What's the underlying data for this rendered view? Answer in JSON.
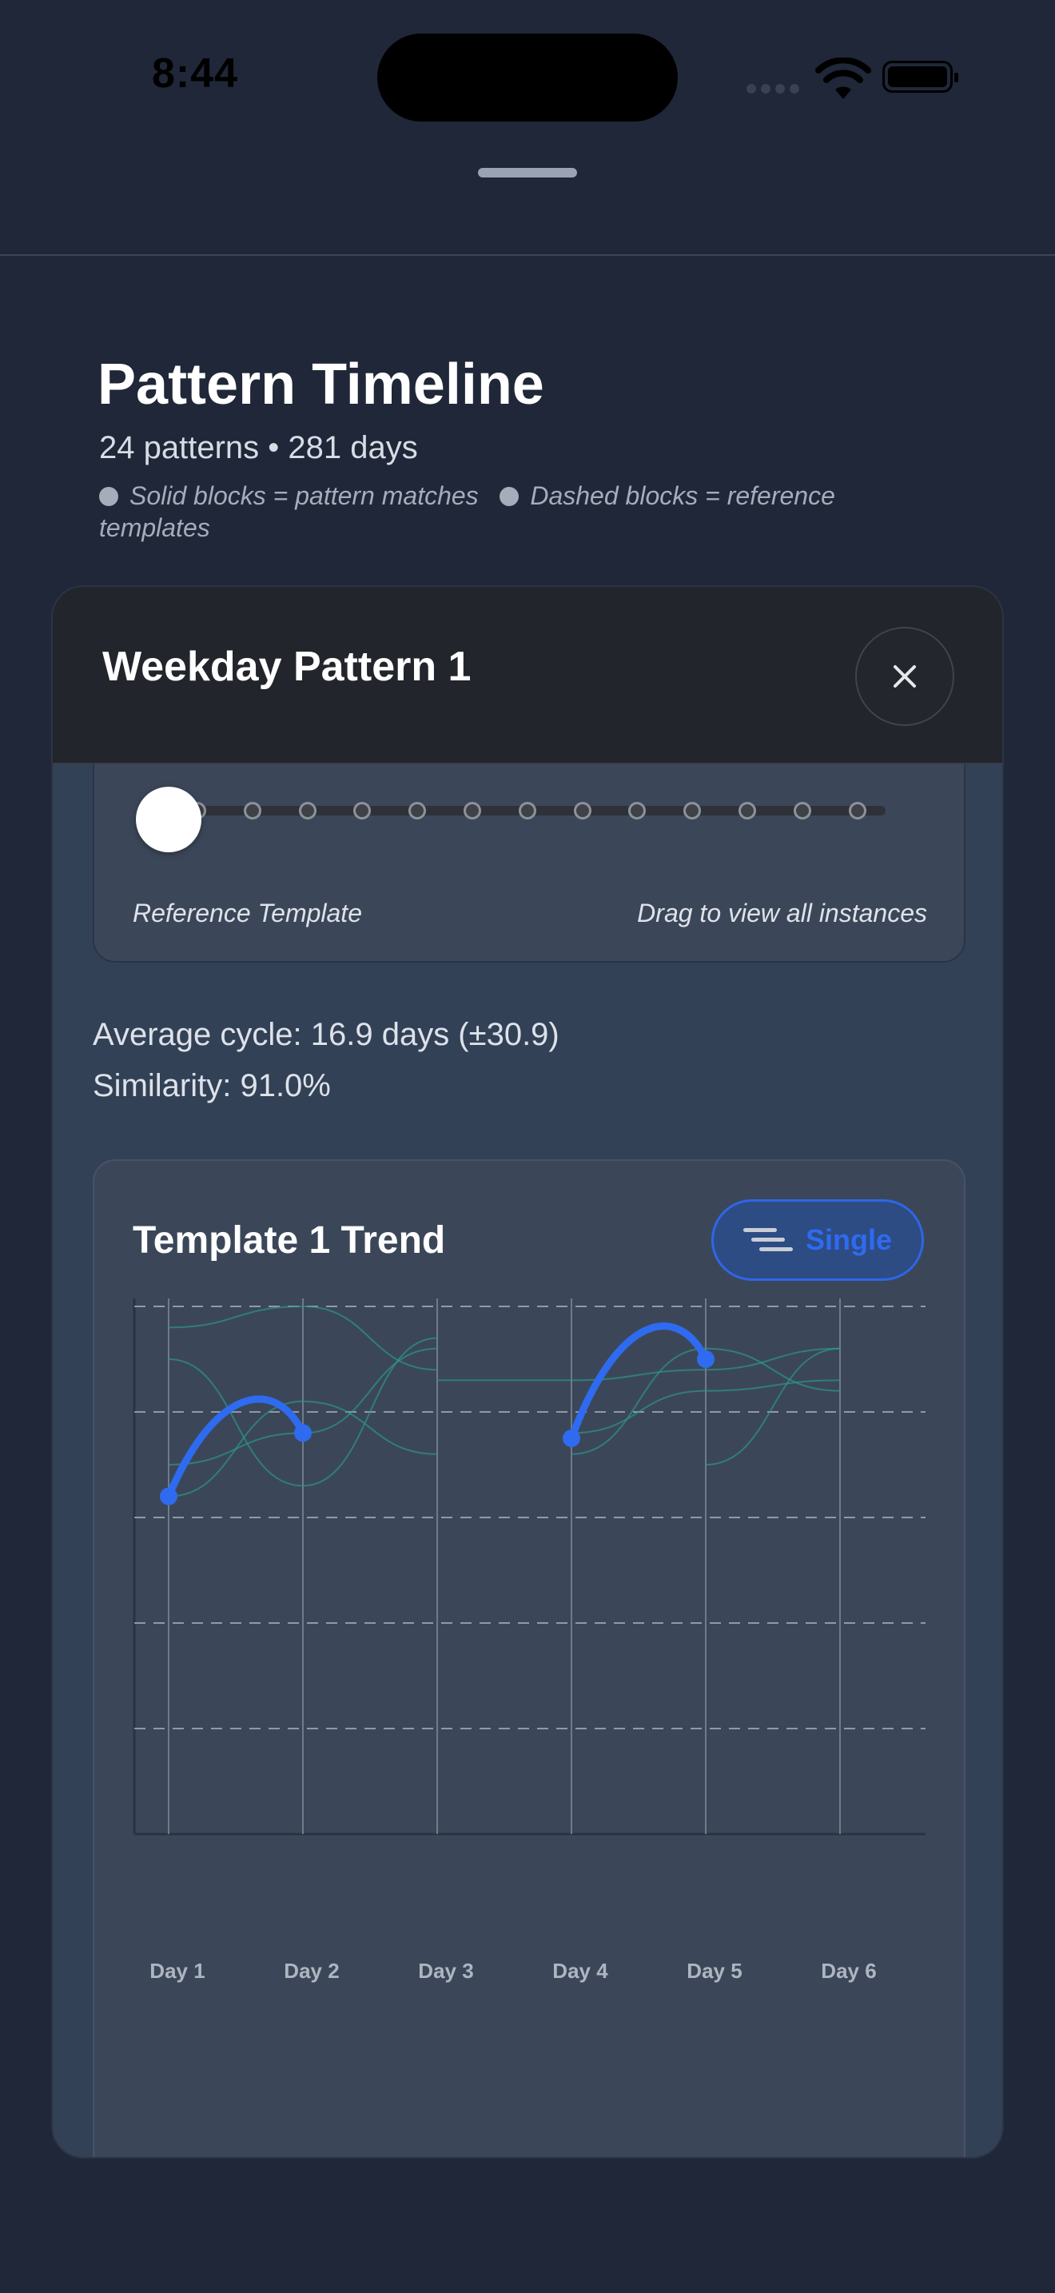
{
  "status_bar": {
    "time": "8:44"
  },
  "header": {
    "title": "Pattern Timeline",
    "subtitle": "24 patterns • 281 days",
    "legend_solid": "Solid blocks = pattern matches",
    "legend_dashed": "Dashed blocks = reference templates"
  },
  "modal": {
    "title": "Weekday Pattern 1",
    "close_icon": "close-icon",
    "slider": {
      "left_label": "Reference Template",
      "right_label": "Drag to view all instances",
      "total_positions": 14,
      "selected_index": 0
    },
    "stats": {
      "average_cycle": "Average cycle: 16.9 days (±30.9)",
      "similarity": "Similarity: 91.0%"
    },
    "chart_card": {
      "title": "Template 1 Trend",
      "toggle_label": "Single",
      "toggle_icon": "lines-icon"
    }
  },
  "colors": {
    "accent": "#2f6bf0",
    "background": "#1f2738",
    "card": "#3b4759",
    "instance_line": "#2d9b8a"
  },
  "chart_data": {
    "type": "line",
    "categories": [
      "Day 1",
      "Day 2",
      "Day 3",
      "Day 4",
      "Day 5",
      "Day 6"
    ],
    "ylim": [
      0,
      5
    ],
    "grid": true,
    "legend": "none",
    "series": [
      {
        "role": "template",
        "segments": [
          [
            [
              1,
              3.2
            ],
            [
              2,
              3.8
            ]
          ],
          [
            [
              4,
              3.75
            ],
            [
              5,
              4.5
            ]
          ]
        ]
      },
      {
        "role": "instance",
        "segments": [
          [
            [
              1,
              4.8
            ],
            [
              2,
              5.0
            ],
            [
              3,
              4.4
            ]
          ],
          [
            [
              3,
              4.3
            ],
            [
              4,
              4.3
            ],
            [
              5,
              4.4
            ],
            [
              6,
              4.6
            ]
          ]
        ]
      },
      {
        "role": "instance",
        "segments": [
          [
            [
              1,
              4.5
            ],
            [
              2,
              3.3
            ],
            [
              3,
              4.7
            ]
          ],
          [
            [
              4,
              3.6
            ],
            [
              5,
              4.6
            ],
            [
              6,
              4.2
            ]
          ]
        ]
      },
      {
        "role": "instance",
        "segments": [
          [
            [
              1,
              3.5
            ],
            [
              2,
              3.8
            ],
            [
              3,
              4.6
            ]
          ],
          [
            [
              4,
              3.8
            ],
            [
              5,
              4.2
            ],
            [
              6,
              4.3
            ]
          ]
        ]
      },
      {
        "role": "instance",
        "segments": [
          [
            [
              1,
              3.2
            ],
            [
              2,
              4.1
            ],
            [
              3,
              3.6
            ]
          ],
          [
            [
              5,
              3.5
            ],
            [
              6,
              4.6
            ]
          ]
        ]
      }
    ]
  }
}
